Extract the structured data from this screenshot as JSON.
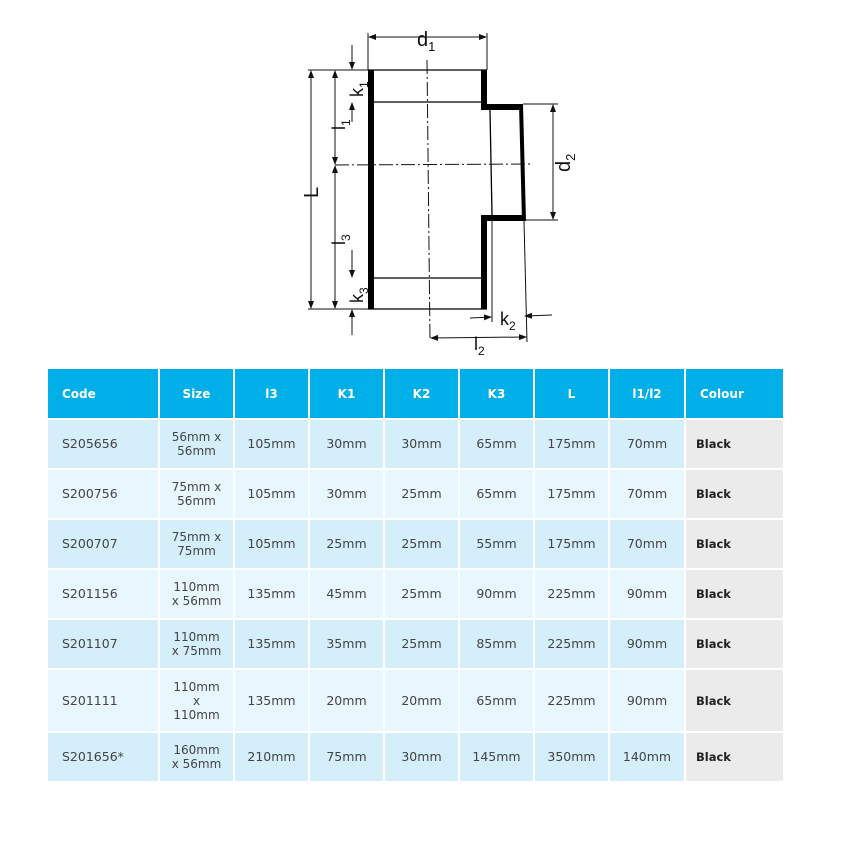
{
  "drawing": {
    "labels": {
      "d1": "d",
      "d1_sub": "1",
      "d2": "d",
      "d2_sub": "2",
      "k1": "k",
      "k1_sub": "1",
      "l1": "l",
      "l1_sub": "1",
      "L": "L",
      "l3": "l",
      "l3_sub": "3",
      "k3": "k",
      "k3_sub": "3",
      "k2": "k",
      "k2_sub": "2",
      "l2": "l",
      "l2_sub": "2"
    }
  },
  "table": {
    "headers": [
      "Code",
      "Size",
      "l3",
      "K1",
      "K2",
      "K3",
      "L",
      "l1/l2",
      "Colour"
    ],
    "rows": [
      [
        "S205656",
        "56mm x\n56mm",
        "105mm",
        "30mm",
        "30mm",
        "65mm",
        "175mm",
        "70mm",
        "Black"
      ],
      [
        "S200756",
        "75mm x\n56mm",
        "105mm",
        "30mm",
        "25mm",
        "65mm",
        "175mm",
        "70mm",
        "Black"
      ],
      [
        "S200707",
        "75mm x\n75mm",
        "105mm",
        "25mm",
        "25mm",
        "55mm",
        "175mm",
        "70mm",
        "Black"
      ],
      [
        "S201156",
        "110mm\nx 56mm",
        "135mm",
        "45mm",
        "25mm",
        "90mm",
        "225mm",
        "90mm",
        "Black"
      ],
      [
        "S201107",
        "110mm\nx 75mm",
        "135mm",
        "35mm",
        "25mm",
        "85mm",
        "225mm",
        "90mm",
        "Black"
      ],
      [
        "S201111",
        "110mm\nx\n110mm",
        "135mm",
        "20mm",
        "20mm",
        "65mm",
        "225mm",
        "90mm",
        "Black"
      ],
      [
        "S201656*",
        "160mm\nx 56mm",
        "210mm",
        "75mm",
        "30mm",
        "145mm",
        "350mm",
        "140mm",
        "Black"
      ]
    ]
  },
  "colors": {
    "header": "#00aee8",
    "row_odd": "#d4eefa",
    "row_even": "#e8f6fd",
    "colour_col": "#ebebeb"
  }
}
